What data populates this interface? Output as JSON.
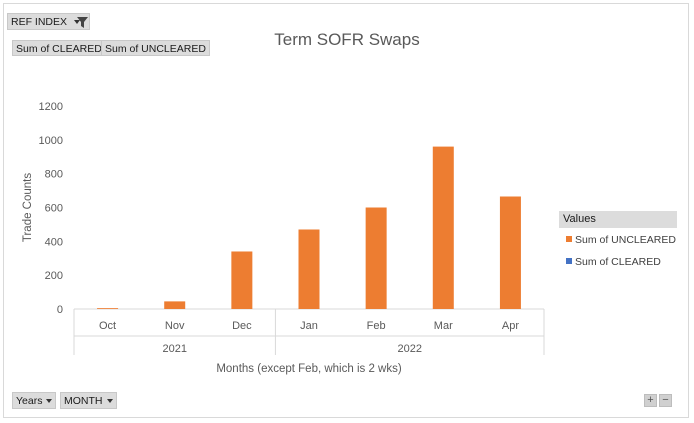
{
  "filter_button": {
    "label": "REF INDEX",
    "icon": "funnel-icon"
  },
  "value_buttons": [
    "Sum of CLEARED",
    "Sum of UNCLEARED"
  ],
  "axis_buttons": [
    "Years",
    "MONTH"
  ],
  "zoom": {
    "plus": "+",
    "minus": "−"
  },
  "colors": {
    "uncleared": "#ED7D31",
    "cleared": "#4472C4"
  },
  "chart_data": {
    "type": "bar",
    "title": "Term SOFR Swaps",
    "xlabel": "Months (except Feb, which is 2 wks)",
    "ylabel": "Trade Counts",
    "ylim": [
      0,
      1200
    ],
    "yticks": [
      0,
      200,
      400,
      600,
      800,
      1000,
      1200
    ],
    "grid": false,
    "categories": [
      "Oct",
      "Nov",
      "Dec",
      "Jan",
      "Feb",
      "Mar",
      "Apr"
    ],
    "groups": [
      {
        "label": "2021",
        "categories": [
          "Oct",
          "Nov",
          "Dec"
        ]
      },
      {
        "label": "2022",
        "categories": [
          "Jan",
          "Feb",
          "Mar",
          "Apr"
        ]
      }
    ],
    "series": [
      {
        "name": "Sum of UNCLEARED",
        "color": "#ED7D31",
        "values": [
          5,
          45,
          340,
          470,
          600,
          960,
          665
        ]
      },
      {
        "name": "Sum of CLEARED",
        "color": "#4472C4",
        "values": [
          0,
          0,
          0,
          0,
          0,
          0,
          0
        ]
      }
    ],
    "legend": {
      "title": "Values",
      "position": "right"
    }
  }
}
